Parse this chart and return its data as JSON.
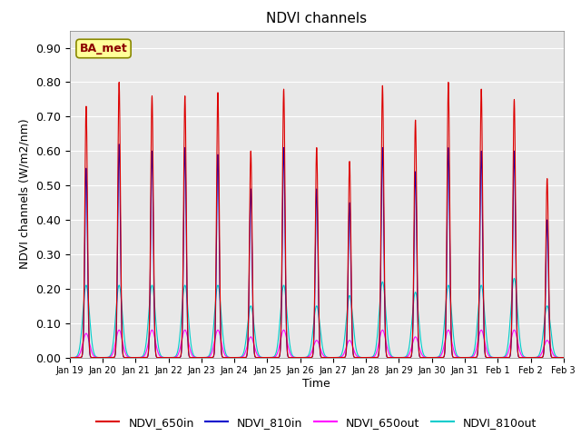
{
  "title": "NDVI channels",
  "ylabel": "NDVI channels (W/m2/nm)",
  "xlabel": "Time",
  "ylim": [
    0.0,
    0.95
  ],
  "yticks": [
    0.0,
    0.1,
    0.2,
    0.3,
    0.4,
    0.5,
    0.6,
    0.7,
    0.8,
    0.9
  ],
  "n_days": 15,
  "colors": {
    "NDVI_650in": "#dd0000",
    "NDVI_810in": "#0000cc",
    "NDVI_650out": "#ff00ff",
    "NDVI_810out": "#00cccc"
  },
  "background_color": "#e8e8e8",
  "annotation_text": "BA_met",
  "peak_650in": [
    0.73,
    0.8,
    0.76,
    0.76,
    0.77,
    0.6,
    0.78,
    0.61,
    0.57,
    0.79,
    0.69,
    0.8,
    0.78,
    0.75,
    0.52
  ],
  "peak_810in": [
    0.55,
    0.62,
    0.6,
    0.61,
    0.59,
    0.49,
    0.61,
    0.49,
    0.45,
    0.61,
    0.54,
    0.61,
    0.6,
    0.6,
    0.4
  ],
  "peak_650out": [
    0.07,
    0.08,
    0.08,
    0.08,
    0.08,
    0.06,
    0.08,
    0.05,
    0.05,
    0.08,
    0.06,
    0.08,
    0.08,
    0.08,
    0.05
  ],
  "peak_810out": [
    0.21,
    0.21,
    0.21,
    0.21,
    0.21,
    0.15,
    0.21,
    0.15,
    0.18,
    0.22,
    0.19,
    0.21,
    0.21,
    0.23,
    0.15
  ],
  "xtick_labels": [
    "Jan 19",
    "Jan 20",
    "Jan 21",
    "Jan 22",
    "Jan 23",
    "Jan 24",
    "Jan 25",
    "Jan 26",
    "Jan 27",
    "Jan 28",
    "Jan 29",
    "Jan 30",
    "Jan 31",
    "Feb 1",
    "Feb 2",
    "Feb 3"
  ]
}
